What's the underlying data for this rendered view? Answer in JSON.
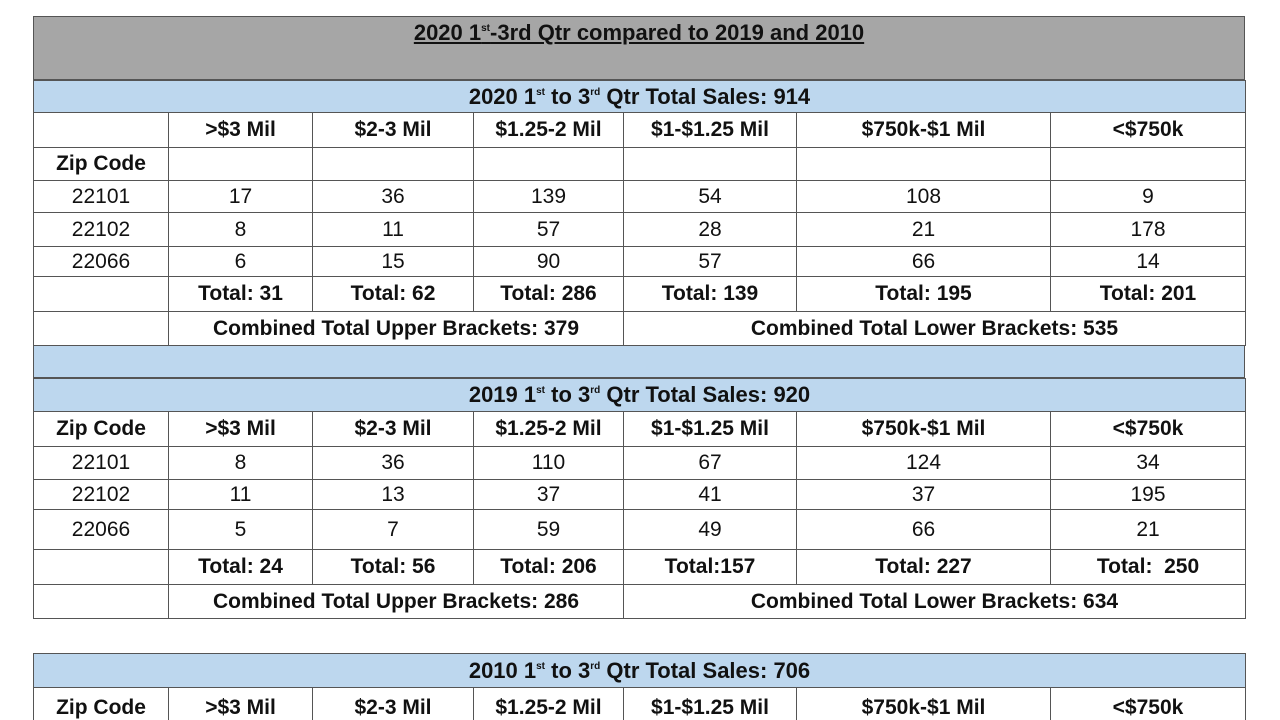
{
  "title": {
    "parts": [
      "2020 1",
      "st",
      "-3rd Qtr compared to 2019 and 2010"
    ]
  },
  "tables": [
    {
      "heading": [
        "2020 1",
        "st",
        " to 3",
        "rd",
        " Qtr Total Sales: 914"
      ],
      "columns": [
        ">$3 Mil",
        "$2-3 Mil",
        "$1.25-2 Mil",
        "$1-$1.25 Mil",
        "$750k-$1 Mil",
        "<$750k"
      ],
      "zip_label": "Zip Code",
      "rows": [
        {
          "zip": "22101",
          "values": [
            17,
            36,
            139,
            54,
            108,
            9
          ]
        },
        {
          "zip": "22102",
          "values": [
            8,
            11,
            57,
            28,
            21,
            178
          ]
        },
        {
          "zip": "22066",
          "values": [
            6,
            15,
            90,
            57,
            66,
            14
          ]
        }
      ],
      "totals": [
        "Total: 31",
        "Total: 62",
        "Total: 286",
        "Total: 139",
        "Total: 195",
        "Total: 201"
      ],
      "combined": [
        "Combined Total Upper Brackets: 379",
        "Combined Total Lower Brackets: 535"
      ]
    },
    {
      "heading": [
        "2019 1",
        "st",
        " to 3",
        "rd",
        " Qtr Total Sales: 920"
      ],
      "columns": [
        ">$3 Mil",
        "$2-3 Mil",
        "$1.25-2 Mil",
        "$1-$1.25 Mil",
        "$750k-$1 Mil",
        "<$750k"
      ],
      "zip_label": "Zip Code",
      "rows": [
        {
          "zip": "22101",
          "values": [
            8,
            36,
            110,
            67,
            124,
            34
          ]
        },
        {
          "zip": "22102",
          "values": [
            11,
            13,
            37,
            41,
            37,
            195
          ]
        },
        {
          "zip": "22066",
          "values": [
            5,
            7,
            59,
            49,
            66,
            21
          ]
        }
      ],
      "totals": [
        "Total: 24",
        "Total: 56",
        "Total: 206",
        "Total:157",
        "Total: 227",
        "Total:  250"
      ],
      "combined": [
        "Combined Total Upper Brackets: 286",
        "Combined Total Lower Brackets: 634"
      ]
    },
    {
      "heading": [
        "2010 1",
        "st",
        " to 3",
        "rd",
        " Qtr Total Sales: 706"
      ],
      "columns": [
        ">$3 Mil",
        "$2-3 Mil",
        "$1.25-2 Mil",
        "$1-$1.25 Mil",
        "$750k-$1 Mil",
        "<$750k"
      ],
      "zip_label": "Zip Code"
    }
  ]
}
